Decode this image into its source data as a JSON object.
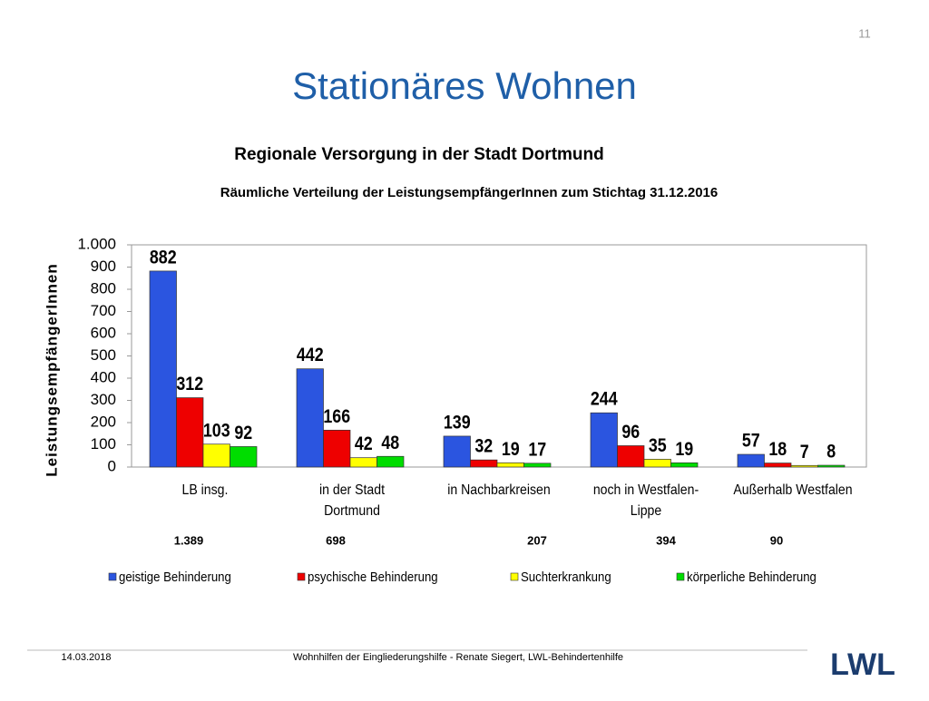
{
  "page_number": "11",
  "title": "Stationäres Wohnen",
  "chart_data": {
    "type": "bar",
    "title": "Regionale Versorgung in der Stadt  Dortmund",
    "subtitle": "Räumliche Verteilung der LeistungsempfängerInnen zum Stichtag 31.12.2016",
    "y_label": "LeistungsempfängerInnen",
    "categories": [
      "LB insg.",
      "in der Stadt\nDortmund",
      "in Nachbarkreisen",
      "noch in Westfalen-\nLippe",
      "Außerhalb  Westfalen"
    ],
    "totals": [
      {
        "value": 1389,
        "label": "1.389"
      },
      698,
      207,
      394,
      90
    ],
    "series": [
      {
        "name": "geistige Behinderung",
        "color": "#2b55e0",
        "values": [
          882,
          442,
          139,
          244,
          57
        ]
      },
      {
        "name": "psychische Behinderung",
        "color": "#ee0000",
        "values": [
          312,
          166,
          32,
          96,
          18
        ]
      },
      {
        "name": "Suchterkrankung",
        "color": "#ffff00",
        "values": [
          103,
          42,
          19,
          35,
          7
        ]
      },
      {
        "name": "körperliche Behinderung",
        "color": "#00dd00",
        "values": [
          92,
          48,
          17,
          19,
          8
        ]
      }
    ],
    "ylim": [
      0,
      1000
    ],
    "yticks": [
      0,
      100,
      200,
      300,
      400,
      500,
      600,
      700,
      800,
      900,
      {
        "value": 1000,
        "label": "1.000"
      }
    ],
    "legend": "bottom"
  },
  "footer": {
    "date": "14.03.2018",
    "text": "Wohnhilfen der Eingliederungshilfe - Renate Siegert, LWL-Behindertenhilfe",
    "logo": "LWL"
  }
}
